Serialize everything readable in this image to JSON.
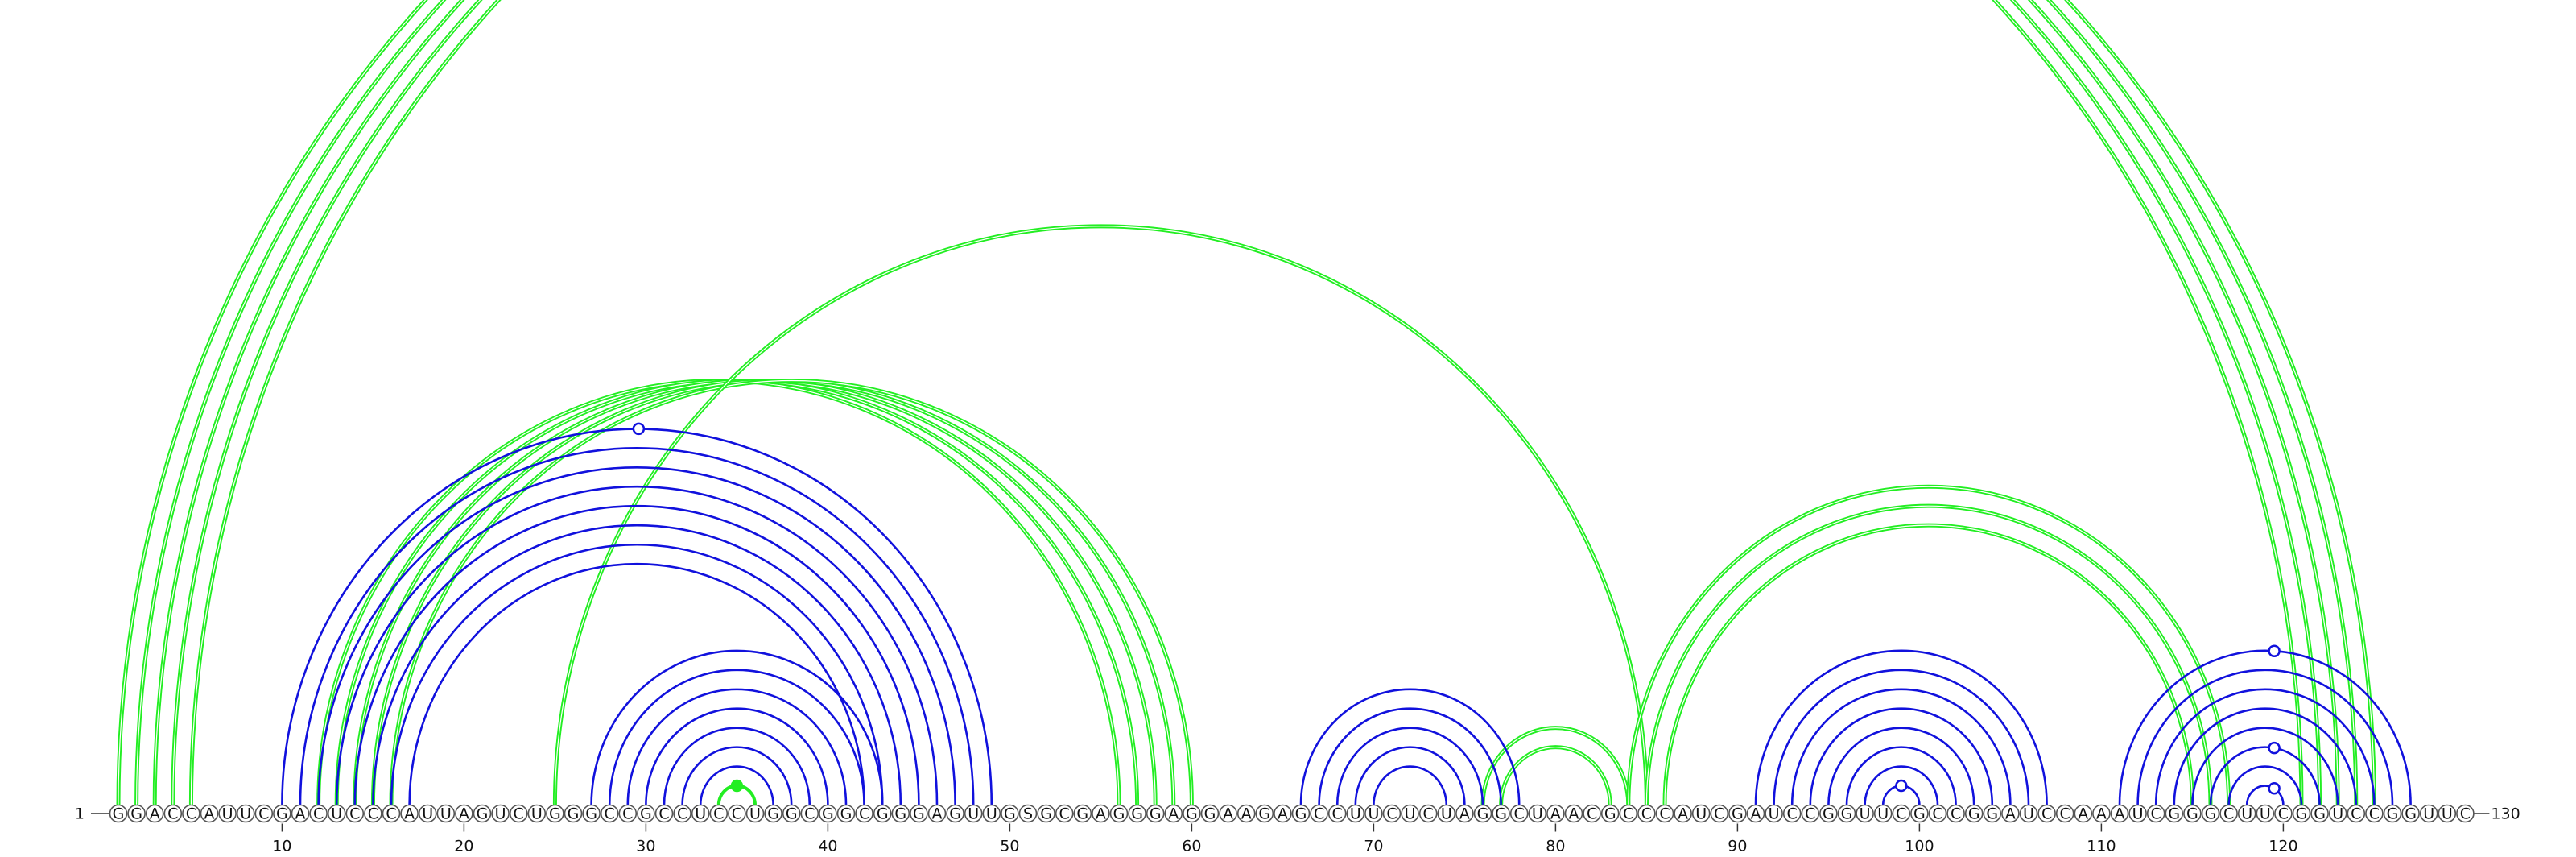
{
  "sequence": "GGACCAUUCGACUCCCAUUAGUCUGGGCCGCCUCCUGGCGGCGGGAGUUGSGCGAGGGAGGAAGAGCCUUCUCUAGGCUAACGCCCAUCGAUCCGGUUCGCCGGAUCCAAAUCGGGCUUCGGUCCGGUUC",
  "start_label": "1",
  "end_label": "130",
  "ticks": [
    "10",
    "20",
    "30",
    "40",
    "50",
    "60",
    "70",
    "80",
    "90",
    "100",
    "110",
    "120"
  ],
  "tick_positions": [
    10,
    20,
    30,
    40,
    50,
    60,
    70,
    80,
    90,
    100,
    110,
    120
  ],
  "colors": {
    "green": "#22ee22",
    "blue": "#1111dd"
  },
  "chart_data": {
    "type": "arc-diagram",
    "length": 130,
    "green_arcs": [
      [
        1,
        121
      ],
      [
        2,
        122
      ],
      [
        3,
        123
      ],
      [
        4,
        124
      ],
      [
        5,
        125
      ],
      [
        12,
        56
      ],
      [
        13,
        57
      ],
      [
        14,
        58
      ],
      [
        15,
        59
      ],
      [
        16,
        60
      ],
      [
        25,
        85
      ],
      [
        76,
        84
      ],
      [
        77,
        83
      ],
      [
        84,
        117
      ],
      [
        85,
        116
      ],
      [
        86,
        115
      ]
    ],
    "blue_arcs": [
      [
        10,
        49
      ],
      [
        11,
        48
      ],
      [
        12,
        47
      ],
      [
        13,
        46
      ],
      [
        14,
        45
      ],
      [
        15,
        44
      ],
      [
        16,
        43
      ],
      [
        17,
        42
      ],
      [
        27,
        43
      ],
      [
        28,
        42
      ],
      [
        29,
        41
      ],
      [
        30,
        40
      ],
      [
        31,
        39
      ],
      [
        32,
        38
      ],
      [
        33,
        37
      ],
      [
        66,
        78
      ],
      [
        67,
        77
      ],
      [
        68,
        76
      ],
      [
        69,
        75
      ],
      [
        70,
        74
      ],
      [
        91,
        107
      ],
      [
        92,
        106
      ],
      [
        93,
        105
      ],
      [
        94,
        104
      ],
      [
        95,
        103
      ],
      [
        96,
        102
      ],
      [
        97,
        101
      ],
      [
        98,
        100
      ],
      [
        111,
        127
      ],
      [
        112,
        126
      ],
      [
        113,
        125
      ],
      [
        114,
        124
      ],
      [
        115,
        123
      ],
      [
        116,
        122
      ],
      [
        117,
        121
      ],
      [
        118,
        120
      ]
    ],
    "pair_markers": [
      {
        "x": 29.6,
        "arc": [
          10,
          49
        ],
        "style": "hollow",
        "color": "blue"
      },
      {
        "x": 35.0,
        "arc": [
          34,
          36
        ],
        "style": "filled",
        "color": "green"
      },
      {
        "x": 99.0,
        "arc": [
          98,
          100
        ],
        "style": "hollow",
        "color": "blue"
      },
      {
        "x": 119.5,
        "arc": [
          111,
          127
        ],
        "style": "hollow",
        "color": "blue"
      },
      {
        "x": 119.5,
        "arc": [
          116,
          122
        ],
        "style": "hollow",
        "color": "blue"
      },
      {
        "x": 119.5,
        "arc": [
          118,
          120
        ],
        "style": "hollow",
        "color": "blue"
      }
    ],
    "small_green_arcs": [
      [
        34,
        36
      ]
    ]
  }
}
